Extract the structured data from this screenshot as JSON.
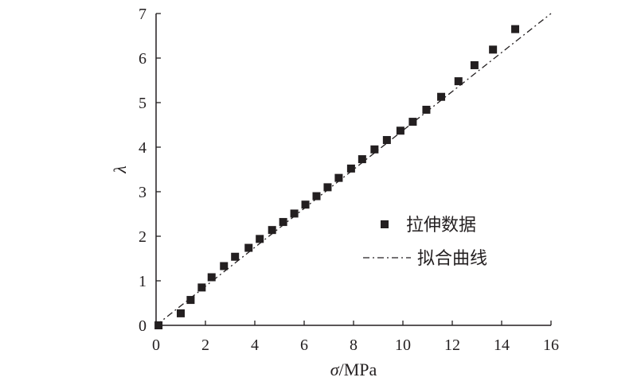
{
  "chart_data": {
    "type": "scatter",
    "xlabel_symbol": "σ",
    "xlabel_unit": "/MPa",
    "ylabel": "λ",
    "xlim": [
      0,
      16
    ],
    "ylim": [
      0,
      7
    ],
    "xticks": [
      0,
      2,
      4,
      6,
      8,
      10,
      12,
      14,
      16
    ],
    "yticks": [
      0,
      1,
      2,
      3,
      4,
      5,
      6,
      7
    ],
    "grid": false,
    "legend_placement": "right",
    "series": [
      {
        "name": "拉伸数据",
        "kind": "scatter",
        "marker": "square",
        "color": "#231f20",
        "x": [
          0.1,
          1.0,
          1.4,
          1.85,
          2.25,
          2.75,
          3.2,
          3.75,
          4.2,
          4.7,
          5.15,
          5.6,
          6.05,
          6.5,
          6.95,
          7.4,
          7.9,
          8.35,
          8.85,
          9.35,
          9.9,
          10.4,
          10.95,
          11.55,
          12.25,
          12.9,
          13.65,
          14.55
        ],
        "y": [
          0.0,
          0.27,
          0.57,
          0.85,
          1.08,
          1.33,
          1.54,
          1.74,
          1.94,
          2.14,
          2.32,
          2.51,
          2.71,
          2.9,
          3.1,
          3.31,
          3.52,
          3.73,
          3.95,
          4.16,
          4.37,
          4.57,
          4.84,
          5.13,
          5.48,
          5.84,
          6.19,
          6.65
        ]
      },
      {
        "name": "拟合曲线",
        "kind": "line",
        "dash": "dash-dot",
        "color": "#231f20",
        "x": [
          0.0,
          16.0
        ],
        "y": [
          0.0,
          7.0
        ]
      }
    ]
  }
}
